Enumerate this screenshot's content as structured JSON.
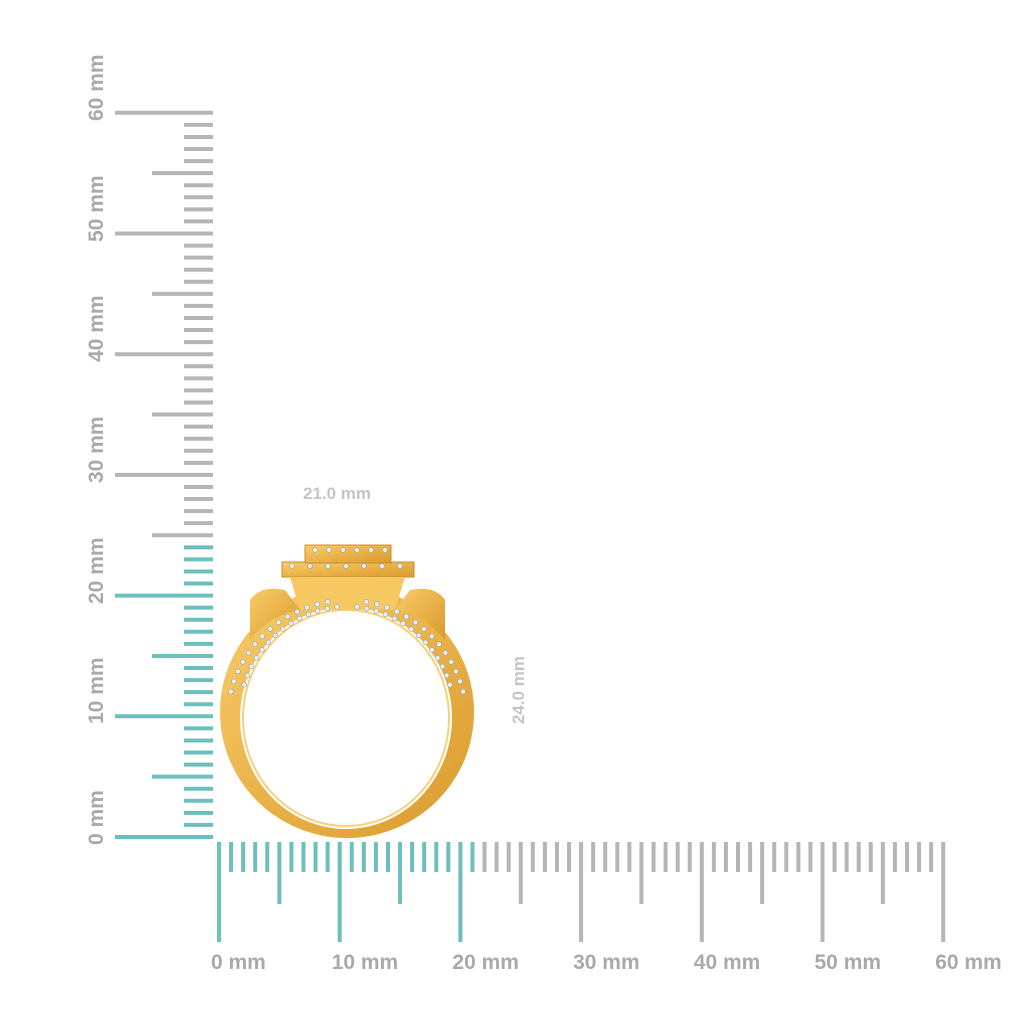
{
  "rulers": {
    "max_mm": 60,
    "vertical_labels": [
      "0 mm",
      "10 mm",
      "20 mm",
      "30 mm",
      "40 mm",
      "50 mm",
      "60 mm"
    ],
    "horizontal_labels": [
      "0 mm",
      "10 mm",
      "20 mm",
      "30 mm",
      "40 mm",
      "50 mm",
      "60 mm"
    ],
    "highlight_vertical_mm": 24,
    "highlight_horizontal_mm": 21,
    "tick_color": "#b5b5b5",
    "highlight_color": "#6cbfbd"
  },
  "dimensions": {
    "width_label": "21.0 mm",
    "height_label": "24.0 mm"
  },
  "product": {
    "metal_color": "#f0b94a",
    "stone_color": "#e8eef2"
  }
}
